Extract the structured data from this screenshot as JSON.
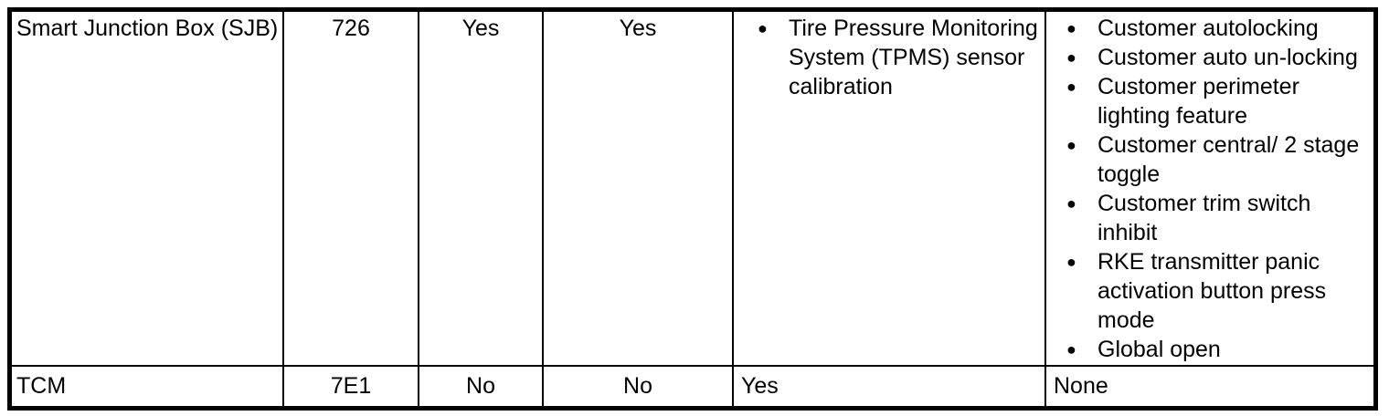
{
  "icons": {
    "bullet": "●"
  },
  "table": {
    "rows": [
      {
        "module": "Smart Junction Box (SJB)",
        "id": "726",
        "flag1": "Yes",
        "flag2": "Yes",
        "procedures": [
          "Tire Pressure Monitoring System (TPMS) sensor calibration"
        ],
        "features": [
          "Customer autolocking",
          "Customer auto un-locking",
          "Customer perimeter lighting feature",
          "Customer central/ 2 stage toggle",
          "Customer trim switch inhibit",
          "RKE transmitter panic activation button press mode",
          "Global open"
        ]
      },
      {
        "module": "TCM",
        "id": "7E1",
        "flag1": "No",
        "flag2": "No",
        "procedures_text": "Yes",
        "features_text": "None"
      }
    ]
  }
}
